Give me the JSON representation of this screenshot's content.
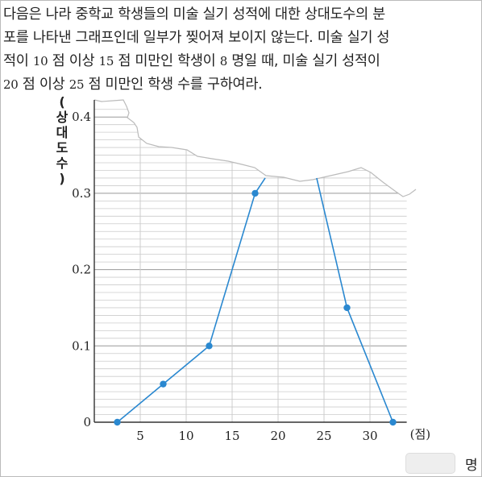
{
  "question": {
    "line1": "다음은 나라 중학교 학생들의 미술 실기 성적에 대한 상대도수의 분",
    "line2": "포를 나타낸 그래프인데 일부가 찢어져 보이지 않는다. 미술 실기 성",
    "line3_a": "적이 ",
    "line3_b": "10",
    "line3_c": " 점 이상 ",
    "line3_d": "15",
    "line3_e": " 점 미만인 학생이 ",
    "line3_f": "8",
    "line3_g": " 명일 때, 미술 실기 성적이",
    "line4_a": "20",
    "line4_b": " 점 이상 ",
    "line4_c": "25",
    "line4_d": " 점 미만인 학생 수를 구하여라."
  },
  "answer": {
    "unit": "명"
  },
  "chart_data": {
    "type": "line",
    "ylabel": "(상대도수)",
    "xlabel": "(점)",
    "x_ticks": [
      "5",
      "10",
      "15",
      "20",
      "25",
      "30"
    ],
    "y_ticks": [
      "0",
      "0.1",
      "0.2",
      "0.3",
      "0.4"
    ],
    "xlim": [
      0,
      34
    ],
    "ylim": [
      0,
      0.42
    ],
    "series": [
      {
        "segment": 1,
        "points": [
          [
            2.5,
            0
          ],
          [
            7.5,
            0.05
          ],
          [
            12.5,
            0.1
          ],
          [
            17.5,
            0.3
          ],
          [
            18.6,
            0.32
          ]
        ]
      },
      {
        "segment": 2,
        "points": [
          [
            24.2,
            0.32
          ],
          [
            27.5,
            0.15
          ],
          [
            32.5,
            0
          ]
        ]
      }
    ],
    "markers": [
      [
        2.5,
        0
      ],
      [
        7.5,
        0.05
      ],
      [
        12.5,
        0.1
      ],
      [
        17.5,
        0.3
      ],
      [
        27.5,
        0.15
      ],
      [
        32.5,
        0
      ]
    ],
    "torn_region": "upper part between x = 17.5 and x = 27.5 hidden",
    "line_color": "#2a88d0",
    "grid": true
  }
}
